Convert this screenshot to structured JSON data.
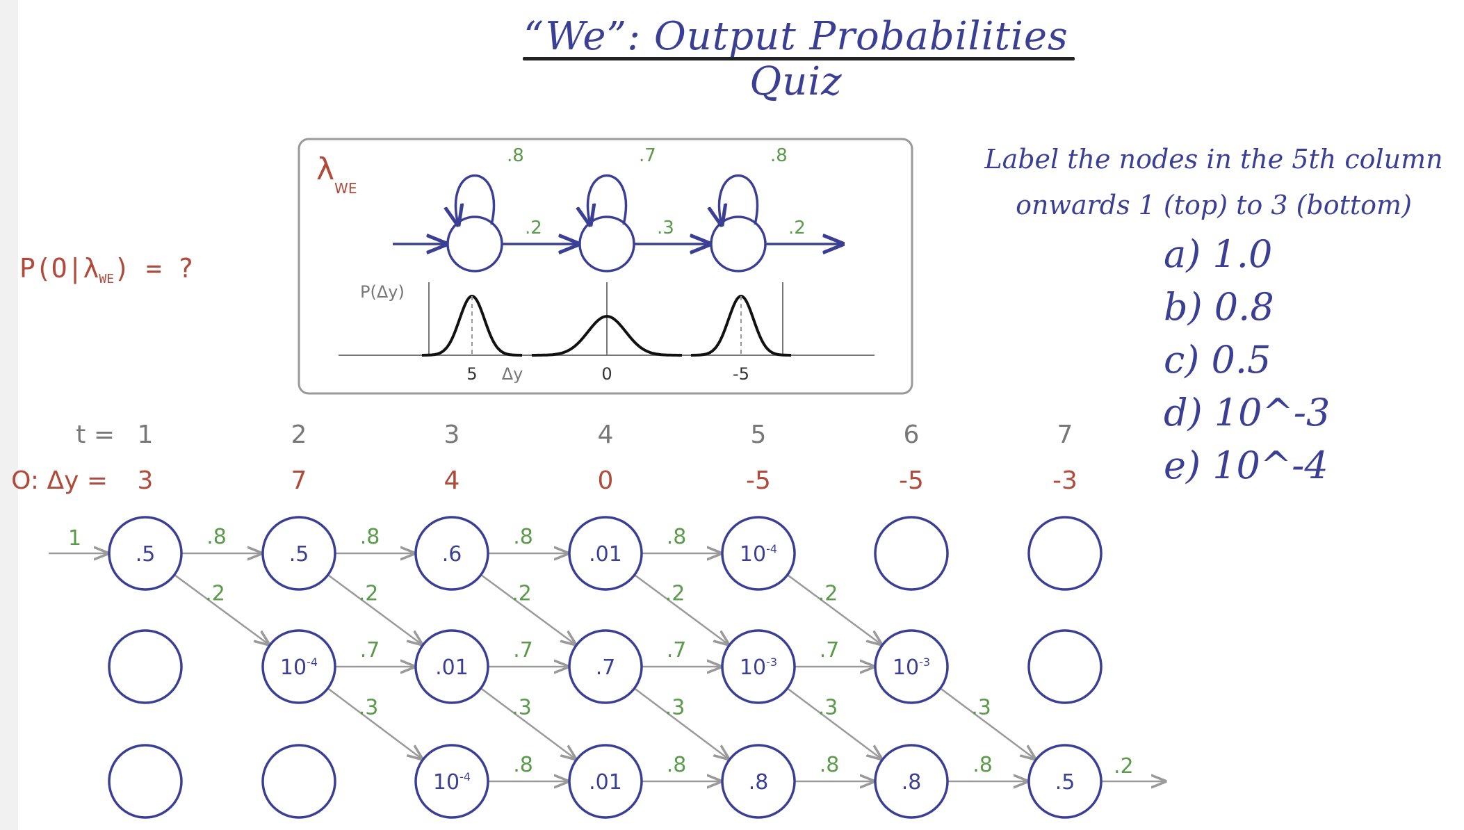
{
  "title": "“We”: Output Probabilities Quiz",
  "question": {
    "prefix": "P(O|λ",
    "subscript": "WE",
    "suffix": ") = ?"
  },
  "instructions": {
    "line1": "Label the nodes in the 5th column",
    "line2": "onwards 1 (top) to 3 (bottom)"
  },
  "options": [
    "a)  1.0",
    "b)  0.8",
    "c)  0.5",
    "d)  10^-3",
    "e)  10^-4"
  ],
  "hmm_model": {
    "lambda_symbol": "λ",
    "lambda_subscript": "WE",
    "self_loops": [
      ".8",
      ".7",
      ".8"
    ],
    "transitions": [
      ".2",
      ".3",
      ".2"
    ],
    "pdf_axis_label": "P(Δy)",
    "pdf_x_axis_label": "Δy",
    "pdf_means": [
      "5",
      "0",
      "-5"
    ]
  },
  "trellis": {
    "time_label": "t =",
    "obs_label": "O: Δy =",
    "times": [
      "1",
      "2",
      "3",
      "4",
      "5",
      "6",
      "7"
    ],
    "observations": [
      "3",
      "7",
      "4",
      "0",
      "-5",
      "-5",
      "-3"
    ],
    "start_prob": "1",
    "end_prob": ".2",
    "nodes": [
      [
        ".5",
        "",
        ""
      ],
      [
        ".5",
        "10-4",
        ""
      ],
      [
        ".6",
        ".01",
        "10-4"
      ],
      [
        ".01",
        ".7",
        ".01"
      ],
      [
        "10-4",
        "10-3",
        ".8"
      ],
      [
        "",
        "10-3",
        ".8"
      ],
      [
        "",
        "",
        ".5"
      ]
    ],
    "self_transitions": [
      [
        ".8",
        ".8",
        ".8",
        ".8",
        "",
        ""
      ],
      [
        "",
        ".7",
        ".7",
        ".7",
        ".7",
        ""
      ],
      [
        "",
        "",
        ".8",
        ".8",
        ".8",
        ".8"
      ]
    ],
    "forward_transitions": [
      [
        ".2",
        ".2",
        ".2",
        ".2",
        ".2",
        ""
      ],
      [
        "",
        ".3",
        ".3",
        ".3",
        ".3",
        ".3"
      ]
    ]
  },
  "colors": {
    "node_stroke": "#3a3f94",
    "node_text": "#3a3f94",
    "prob_label": "#5a9a4a",
    "observation": "#b04a3a",
    "arrow": "#9a9a9a",
    "model_arrow": "#3a3f94",
    "gaussian": "#111111"
  }
}
